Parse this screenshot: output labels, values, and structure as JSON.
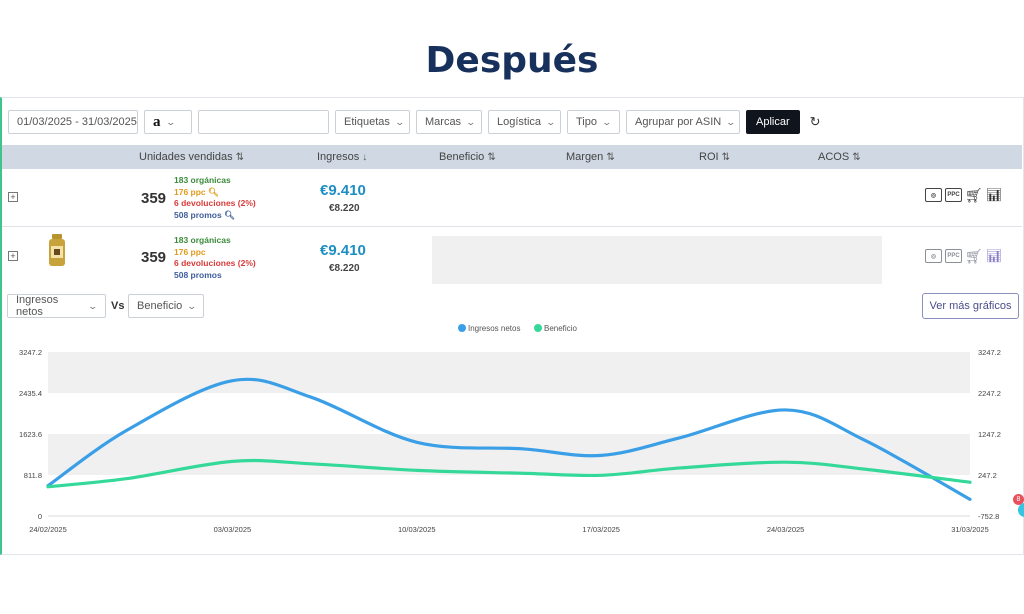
{
  "hero_title": "Después",
  "filters": {
    "date_range": "01/03/2025 - 31/03/2025",
    "marketplace_logo": "a",
    "search_value": "",
    "dropdowns": [
      "Etiquetas",
      "Marcas",
      "Logística",
      "Tipo",
      "Agrupar por ASIN"
    ],
    "apply_label": "Aplicar",
    "reset_icon": "refresh-icon"
  },
  "table": {
    "headers": [
      {
        "label": "Unidades vendidas",
        "sort": "⇅"
      },
      {
        "label": "Ingresos",
        "sort": "↓"
      },
      {
        "label": "Beneficio",
        "sort": "⇅"
      },
      {
        "label": "Margen",
        "sort": "⇅"
      },
      {
        "label": "ROI",
        "sort": "⇅"
      },
      {
        "label": "ACOS",
        "sort": "⇅"
      }
    ],
    "rows": [
      {
        "units": "359",
        "organic": "183 orgánicas",
        "ppc": "176 ppc",
        "returns": "6 devoluciones (2%)",
        "promos": "508 promos",
        "revenue": "€9.410",
        "revenue_secondary": "€8.220"
      },
      {
        "units": "359",
        "organic": "183 orgánicas",
        "ppc": "176 ppc",
        "returns": "6 devoluciones (2%)",
        "promos": "508 promos",
        "revenue": "€9.410",
        "revenue_secondary": "€8.220"
      }
    ],
    "row_icons": [
      "search-analysis-icon",
      "ppc-icon",
      "cart-icon",
      "bar-chart-icon"
    ],
    "ppc_icon_text": "PPC"
  },
  "chart_controls": {
    "metric_a": "Ingresos netos",
    "vs_label": "Vs",
    "metric_b": "Beneficio",
    "more_charts_label": "Ver más gráficos"
  },
  "chart_data": {
    "type": "line",
    "x": [
      "24/02/2025",
      "03/03/2025",
      "10/03/2025",
      "17/03/2025",
      "24/03/2025",
      "31/03/2025"
    ],
    "series": [
      {
        "name": "Ingresos netos",
        "color": "#3a9fe6",
        "axis": "left",
        "x": [
          "24/02/2025",
          "27/02/2025",
          "03/03/2025",
          "06/03/2025",
          "10/03/2025",
          "14/03/2025",
          "17/03/2025",
          "20/03/2025",
          "24/03/2025",
          "27/03/2025",
          "31/03/2025"
        ],
        "values": [
          600,
          1700,
          2680,
          2350,
          1460,
          1330,
          1200,
          1550,
          2100,
          1500,
          330
        ]
      },
      {
        "name": "Beneficio",
        "color": "#34d99a",
        "axis": "right",
        "x": [
          "24/02/2025",
          "27/02/2025",
          "03/03/2025",
          "06/03/2025",
          "10/03/2025",
          "14/03/2025",
          "17/03/2025",
          "20/03/2025",
          "24/03/2025",
          "27/03/2025",
          "31/03/2025"
        ],
        "values": [
          -40,
          160,
          580,
          520,
          360,
          290,
          240,
          420,
          560,
          390,
          70
        ]
      }
    ],
    "y_left": {
      "ticks": [
        "0",
        "811.8",
        "1623.6",
        "2435.4",
        "3247.2"
      ],
      "ylim": [
        0,
        3247.2
      ]
    },
    "y_right": {
      "ticks": [
        "-752.8",
        "247.2",
        "1247.2",
        "2247.2",
        "3247.2"
      ],
      "ylim": [
        -752.8,
        3247.2
      ]
    },
    "legend_position": "top-center",
    "grid": "alternating horizontal bands"
  },
  "notification_badge": "8",
  "colors": {
    "brand_title": "#17315c",
    "revenue": "#1e8ec2",
    "organic": "#3a8a3a",
    "ppc": "#e19b1d",
    "returns": "#d83a3a",
    "promos": "#3d5d9c"
  }
}
